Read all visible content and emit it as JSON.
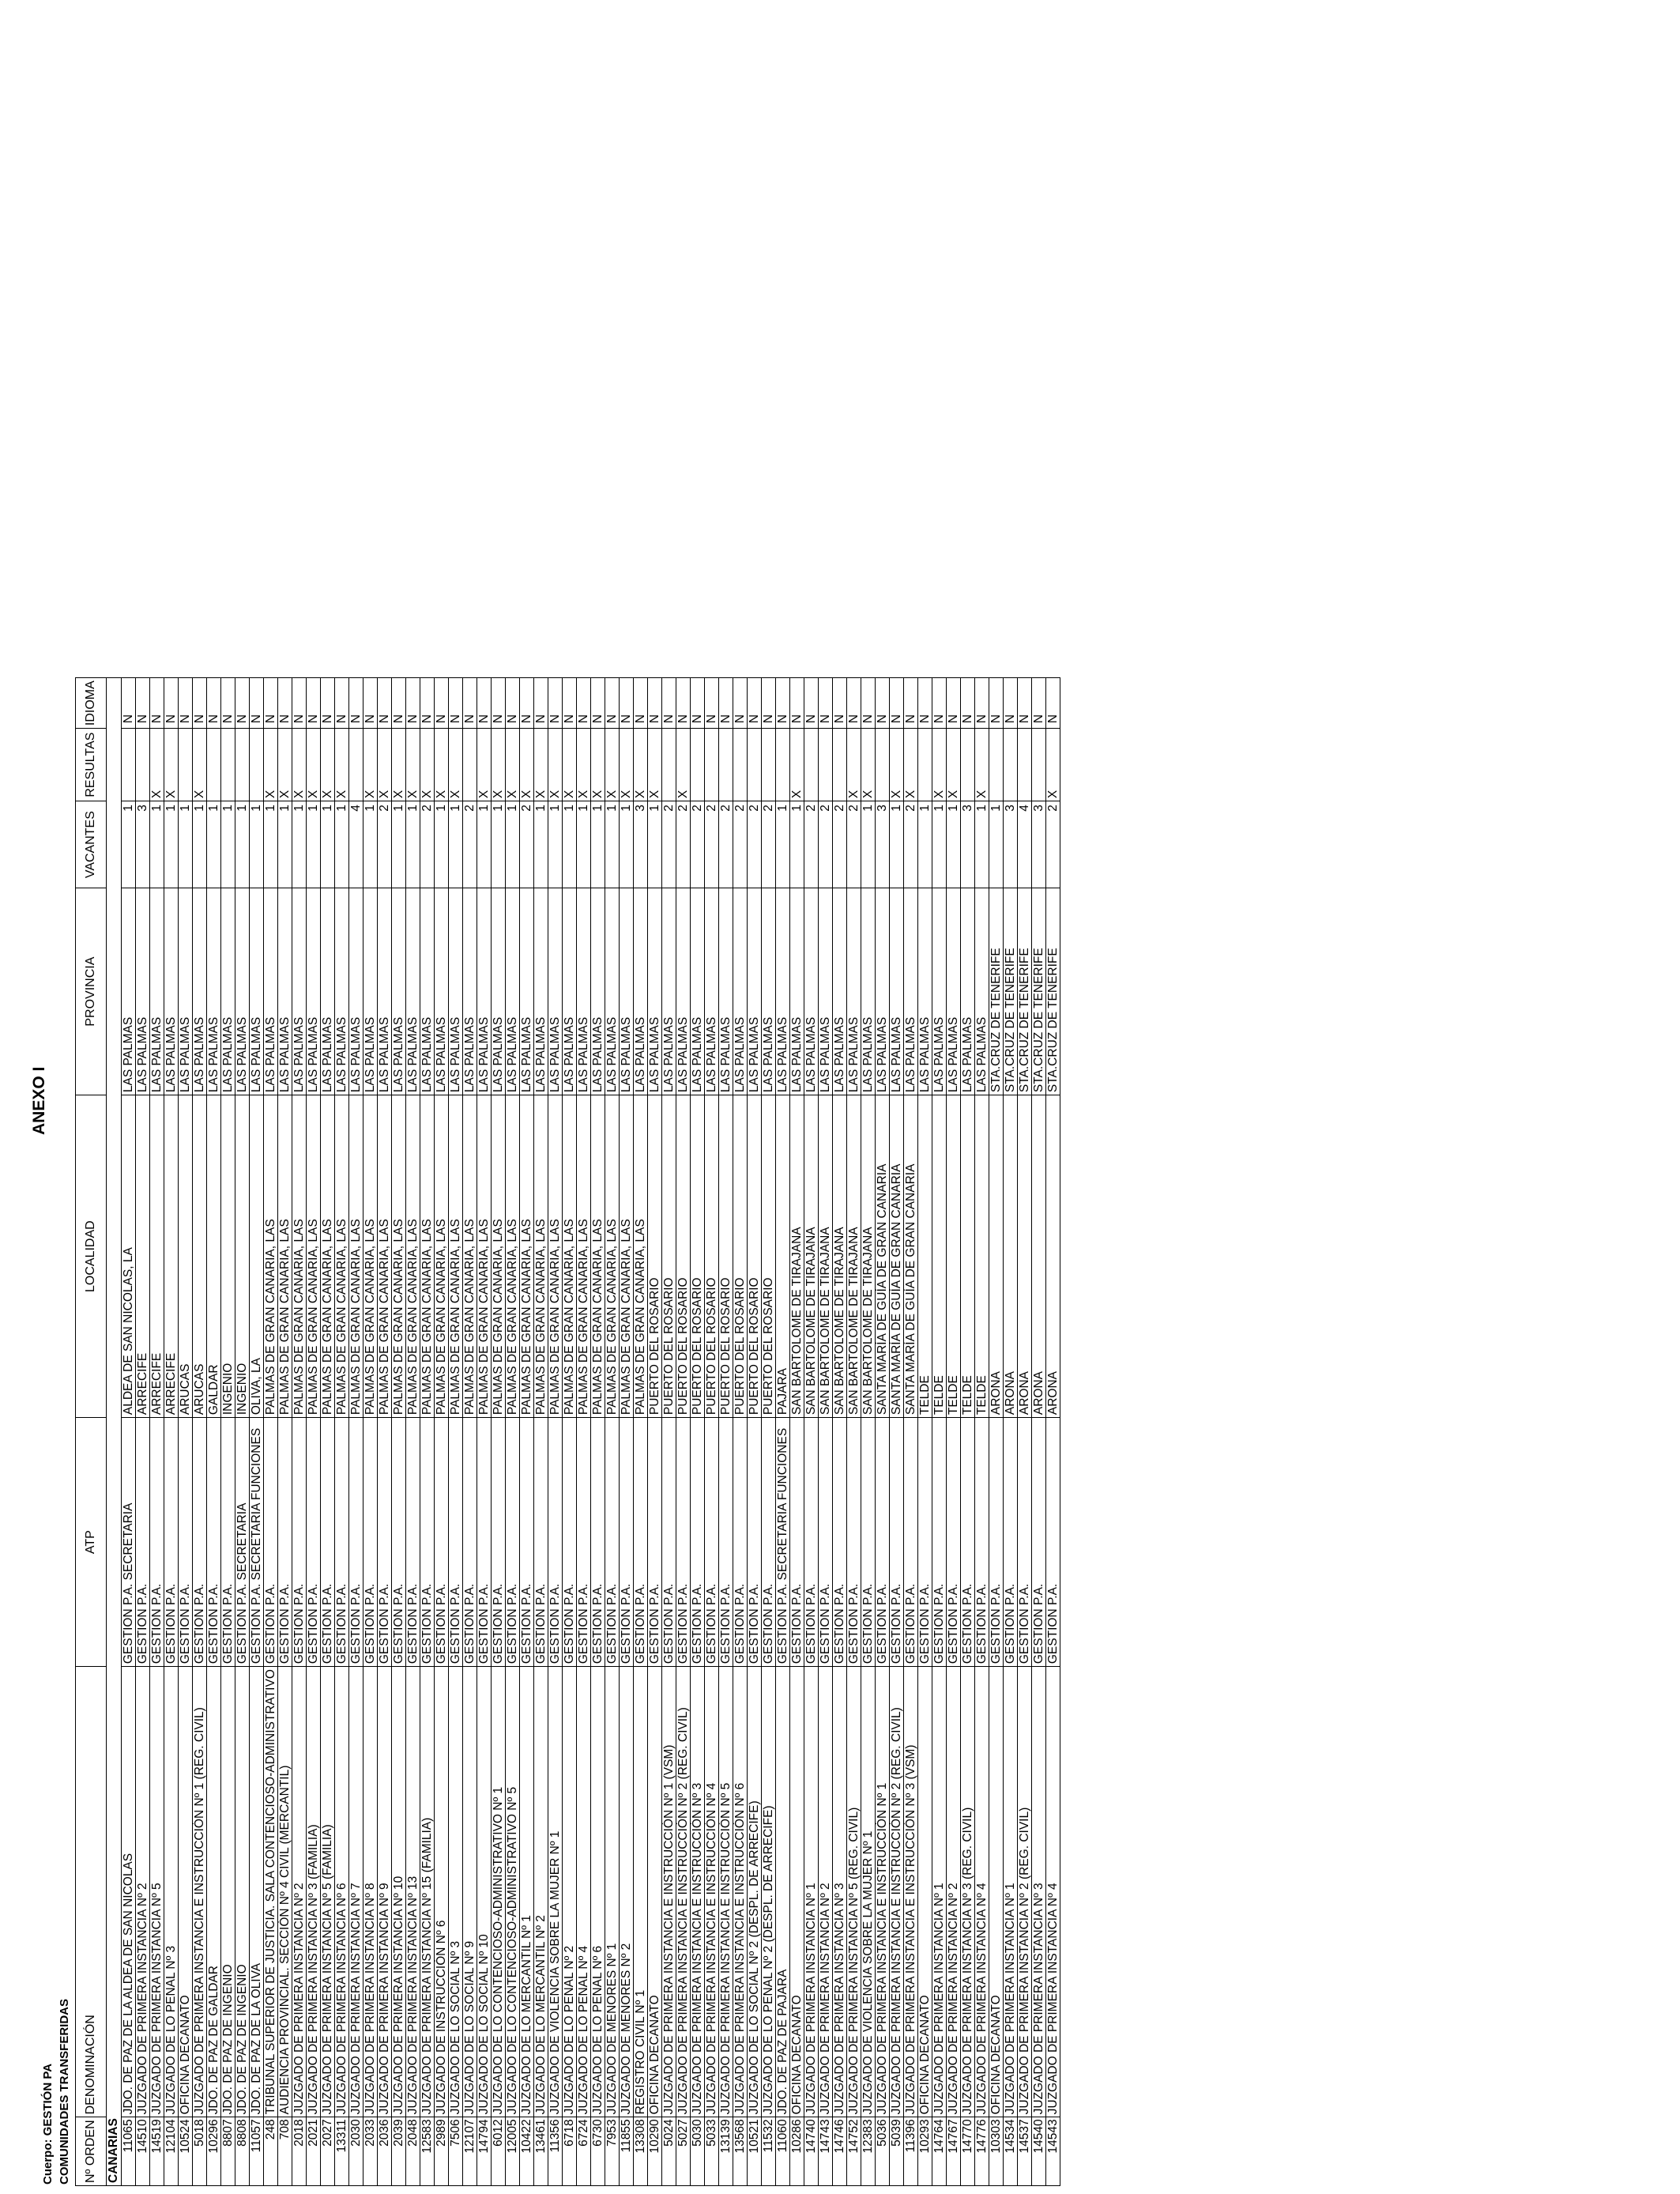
{
  "title": "ANEXO I",
  "cuerpo": "Cuerpo: GESTIÓN PA",
  "section": "COMUNIDADES TRANSFERIDAS",
  "columns": {
    "orden": "Nº ORDEN",
    "denominacion": "DENOMINACIÓN",
    "atp": "ATP",
    "localidad": "LOCALIDAD",
    "provincia": "PROVINCIA",
    "vacantes": "VACANTES",
    "resultas": "RESULTAS",
    "idioma": "IDIOMA"
  },
  "region": "CANARIAS",
  "rows": [
    [
      "11065",
      "JDO. DE PAZ DE LA ALDEA DE SAN NICOLAS",
      "GESTION P.A. SECRETARIA",
      "ALDEA DE SAN NICOLAS, LA",
      "LAS PALMAS",
      "1",
      "",
      "N"
    ],
    [
      "14510",
      "JUZGADO DE PRIMERA INSTANCIA Nº 2",
      "GESTION P.A.",
      "ARRECIFE",
      "LAS PALMAS",
      "3",
      "",
      "N"
    ],
    [
      "14519",
      "JUZGADO DE PRIMERA INSTANCIA Nº 5",
      "GESTION P.A.",
      "ARRECIFE",
      "LAS PALMAS",
      "1",
      "X",
      "N"
    ],
    [
      "12104",
      "JUZGADO DE LO PENAL Nº 3",
      "GESTION P.A.",
      "ARRECIFE",
      "LAS PALMAS",
      "1",
      "X",
      "N"
    ],
    [
      "10524",
      "OFICINA DECANATO",
      "GESTION P.A.",
      "ARUCAS",
      "LAS PALMAS",
      "1",
      "",
      "N"
    ],
    [
      "5018",
      "JUZGADO DE PRIMERA INSTANCIA E INSTRUCCIÓN Nº 1 (REG. CIVIL)",
      "GESTION P.A.",
      "ARUCAS",
      "LAS PALMAS",
      "1",
      "X",
      "N"
    ],
    [
      "10296",
      "JDO. DE PAZ DE GALDAR",
      "GESTION P.A.",
      "GALDAR",
      "LAS PALMAS",
      "1",
      "",
      "N"
    ],
    [
      "8807",
      "JDO. DE PAZ DE INGENIO",
      "GESTION P.A.",
      "INGENIO",
      "LAS PALMAS",
      "1",
      "",
      "N"
    ],
    [
      "8808",
      "JDO. DE PAZ DE INGENIO",
      "GESTION P.A. SECRETARIA",
      "INGENIO",
      "LAS PALMAS",
      "1",
      "",
      "N"
    ],
    [
      "11057",
      "JDO. DE PAZ DE LA OLIVA",
      "GESTION P.A. SECRETARIA FUNCIONES",
      "OLIVA, LA",
      "LAS PALMAS",
      "1",
      "",
      "N"
    ],
    [
      "248",
      "TRIBUNAL SUPERIOR DE JUSTICIA. SALA CONTENCIOSO-ADMINISTRATIVO",
      "GESTION P.A.",
      "PALMAS DE GRAN CANARIA, LAS",
      "LAS PALMAS",
      "1",
      "X",
      "N"
    ],
    [
      "708",
      "AUDIENCIA PROVINCIAL. SECCIÓN Nº 4 CIVIL (MERCANTIL)",
      "GESTION P.A.",
      "PALMAS DE GRAN CANARIA, LAS",
      "LAS PALMAS",
      "1",
      "X",
      "N"
    ],
    [
      "2018",
      "JUZGADO DE PRIMERA INSTANCIA Nº 2",
      "GESTION P.A.",
      "PALMAS DE GRAN CANARIA, LAS",
      "LAS PALMAS",
      "1",
      "X",
      "N"
    ],
    [
      "2021",
      "JUZGADO DE PRIMERA INSTANCIA Nº 3 (FAMILIA)",
      "GESTION P.A.",
      "PALMAS DE GRAN CANARIA, LAS",
      "LAS PALMAS",
      "1",
      "X",
      "N"
    ],
    [
      "2027",
      "JUZGADO DE PRIMERA INSTANCIA Nº 5 (FAMILIA)",
      "GESTION P.A.",
      "PALMAS DE GRAN CANARIA, LAS",
      "LAS PALMAS",
      "1",
      "X",
      "N"
    ],
    [
      "13311",
      "JUZGADO DE PRIMERA INSTANCIA Nº 6",
      "GESTION P.A.",
      "PALMAS DE GRAN CANARIA, LAS",
      "LAS PALMAS",
      "1",
      "X",
      "N"
    ],
    [
      "2030",
      "JUZGADO DE PRIMERA INSTANCIA Nº 7",
      "GESTION P.A.",
      "PALMAS DE GRAN CANARIA, LAS",
      "LAS PALMAS",
      "4",
      "",
      "N"
    ],
    [
      "2033",
      "JUZGADO DE PRIMERA INSTANCIA Nº 8",
      "GESTION P.A.",
      "PALMAS DE GRAN CANARIA, LAS",
      "LAS PALMAS",
      "1",
      "X",
      "N"
    ],
    [
      "2036",
      "JUZGADO DE PRIMERA INSTANCIA Nº 9",
      "GESTION P.A.",
      "PALMAS DE GRAN CANARIA, LAS",
      "LAS PALMAS",
      "2",
      "X",
      "N"
    ],
    [
      "2039",
      "JUZGADO DE PRIMERA INSTANCIA Nº 10",
      "GESTION P.A.",
      "PALMAS DE GRAN CANARIA, LAS",
      "LAS PALMAS",
      "1",
      "X",
      "N"
    ],
    [
      "2048",
      "JUZGADO DE PRIMERA INSTANCIA Nº 13",
      "GESTION P.A.",
      "PALMAS DE GRAN CANARIA, LAS",
      "LAS PALMAS",
      "1",
      "X",
      "N"
    ],
    [
      "12583",
      "JUZGADO DE PRIMERA INSTANCIA Nº 15 (FAMILIA)",
      "GESTION P.A.",
      "PALMAS DE GRAN CANARIA, LAS",
      "LAS PALMAS",
      "2",
      "X",
      "N"
    ],
    [
      "2989",
      "JUZGADO DE INSTRUCCIÓN Nº 6",
      "GESTION P.A.",
      "PALMAS DE GRAN CANARIA, LAS",
      "LAS PALMAS",
      "1",
      "X",
      "N"
    ],
    [
      "7506",
      "JUZGADO DE LO SOCIAL Nº 3",
      "GESTION P.A.",
      "PALMAS DE GRAN CANARIA, LAS",
      "LAS PALMAS",
      "1",
      "X",
      "N"
    ],
    [
      "12107",
      "JUZGADO DE LO SOCIAL Nº 9",
      "GESTION P.A.",
      "PALMAS DE GRAN CANARIA, LAS",
      "LAS PALMAS",
      "2",
      "",
      "N"
    ],
    [
      "14794",
      "JUZGADO DE LO SOCIAL Nº 10",
      "GESTION P.A.",
      "PALMAS DE GRAN CANARIA, LAS",
      "LAS PALMAS",
      "1",
      "X",
      "N"
    ],
    [
      "6012",
      "JUZGADO DE LO CONTENCIOSO-ADMINISTRATIVO Nº 1",
      "GESTION P.A.",
      "PALMAS DE GRAN CANARIA, LAS",
      "LAS PALMAS",
      "1",
      "X",
      "N"
    ],
    [
      "12005",
      "JUZGADO DE LO CONTENCIOSO-ADMINISTRATIVO Nº 5",
      "GESTION P.A.",
      "PALMAS DE GRAN CANARIA, LAS",
      "LAS PALMAS",
      "1",
      "X",
      "N"
    ],
    [
      "10422",
      "JUZGADO DE LO MERCANTIL Nº 1",
      "GESTION P.A.",
      "PALMAS DE GRAN CANARIA, LAS",
      "LAS PALMAS",
      "2",
      "X",
      "N"
    ],
    [
      "13461",
      "JUZGADO DE LO MERCANTIL Nº 2",
      "GESTION P.A.",
      "PALMAS DE GRAN CANARIA, LAS",
      "LAS PALMAS",
      "1",
      "X",
      "N"
    ],
    [
      "11356",
      "JUZGADO DE VIOLENCIA SOBRE LA MUJER Nº 1",
      "GESTION P.A.",
      "PALMAS DE GRAN CANARIA, LAS",
      "LAS PALMAS",
      "1",
      "X",
      "N"
    ],
    [
      "6718",
      "JUZGADO DE LO PENAL Nº 2",
      "GESTION P.A.",
      "PALMAS DE GRAN CANARIA, LAS",
      "LAS PALMAS",
      "1",
      "X",
      "N"
    ],
    [
      "6724",
      "JUZGADO DE LO PENAL Nº 4",
      "GESTION P.A.",
      "PALMAS DE GRAN CANARIA, LAS",
      "LAS PALMAS",
      "1",
      "X",
      "N"
    ],
    [
      "6730",
      "JUZGADO DE LO PENAL Nº 6",
      "GESTION P.A.",
      "PALMAS DE GRAN CANARIA, LAS",
      "LAS PALMAS",
      "1",
      "X",
      "N"
    ],
    [
      "7953",
      "JUZGADO DE MENORES Nº 1",
      "GESTION P.A.",
      "PALMAS DE GRAN CANARIA, LAS",
      "LAS PALMAS",
      "1",
      "X",
      "N"
    ],
    [
      "11855",
      "JUZGADO DE MENORES Nº 2",
      "GESTION P.A.",
      "PALMAS DE GRAN CANARIA, LAS",
      "LAS PALMAS",
      "1",
      "X",
      "N"
    ],
    [
      "13308",
      "REGISTRO CIVIL Nº 1",
      "GESTION P.A.",
      "PALMAS DE GRAN CANARIA, LAS",
      "LAS PALMAS",
      "3",
      "X",
      "N"
    ],
    [
      "10290",
      "OFICINA DECANATO",
      "GESTION P.A.",
      "PUERTO DEL ROSARIO",
      "LAS PALMAS",
      "1",
      "X",
      "N"
    ],
    [
      "5024",
      "JUZGADO DE PRIMERA INSTANCIA E INSTRUCCIÓN Nº 1 (VSM)",
      "GESTION P.A.",
      "PUERTO DEL ROSARIO",
      "LAS PALMAS",
      "2",
      "",
      "N"
    ],
    [
      "5027",
      "JUZGADO DE PRIMERA INSTANCIA E INSTRUCCIÓN Nº 2 (REG. CIVIL)",
      "GESTION P.A.",
      "PUERTO DEL ROSARIO",
      "LAS PALMAS",
      "2",
      "X",
      "N"
    ],
    [
      "5030",
      "JUZGADO DE PRIMERA INSTANCIA E INSTRUCCIÓN Nº 3",
      "GESTION P.A.",
      "PUERTO DEL ROSARIO",
      "LAS PALMAS",
      "2",
      "",
      "N"
    ],
    [
      "5033",
      "JUZGADO DE PRIMERA INSTANCIA E INSTRUCCIÓN Nº 4",
      "GESTION P.A.",
      "PUERTO DEL ROSARIO",
      "LAS PALMAS",
      "2",
      "",
      "N"
    ],
    [
      "13139",
      "JUZGADO DE PRIMERA INSTANCIA E INSTRUCCIÓN Nº 5",
      "GESTION P.A.",
      "PUERTO DEL ROSARIO",
      "LAS PALMAS",
      "2",
      "",
      "N"
    ],
    [
      "13568",
      "JUZGADO DE PRIMERA INSTANCIA E INSTRUCCIÓN Nº 6",
      "GESTION P.A.",
      "PUERTO DEL ROSARIO",
      "LAS PALMAS",
      "2",
      "",
      "N"
    ],
    [
      "10521",
      "JUZGADO DE LO SOCIAL Nº 2 (DESPL. DE ARRECIFE)",
      "GESTION P.A.",
      "PUERTO DEL ROSARIO",
      "LAS PALMAS",
      "2",
      "",
      "N"
    ],
    [
      "11532",
      "JUZGADO DE LO PENAL Nº 2 (DESPL. DE ARRECIFE)",
      "GESTION P.A.",
      "PUERTO DEL ROSARIO",
      "LAS PALMAS",
      "2",
      "",
      "N"
    ],
    [
      "11060",
      "JDO. DE PAZ DE PAJARA",
      "GESTION P.A. SECRETARIA FUNCIONES",
      "PAJARA",
      "LAS PALMAS",
      "1",
      "",
      "N"
    ],
    [
      "10286",
      "OFICINA DECANATO",
      "GESTION P.A.",
      "SAN BARTOLOME DE TIRAJANA",
      "LAS PALMAS",
      "1",
      "X",
      "N"
    ],
    [
      "14740",
      "JUZGADO DE PRIMERA INSTANCIA Nº 1",
      "GESTION P.A.",
      "SAN BARTOLOME DE TIRAJANA",
      "LAS PALMAS",
      "2",
      "",
      "N"
    ],
    [
      "14743",
      "JUZGADO DE PRIMERA INSTANCIA Nº 2",
      "GESTION P.A.",
      "SAN BARTOLOME DE TIRAJANA",
      "LAS PALMAS",
      "2",
      "",
      "N"
    ],
    [
      "14746",
      "JUZGADO DE PRIMERA INSTANCIA Nº 3",
      "GESTION P.A.",
      "SAN BARTOLOME DE TIRAJANA",
      "LAS PALMAS",
      "2",
      "",
      "N"
    ],
    [
      "14752",
      "JUZGADO DE PRIMERA INSTANCIA Nº 5 (REG. CIVIL)",
      "GESTION P.A.",
      "SAN BARTOLOME DE TIRAJANA",
      "LAS PALMAS",
      "2",
      "X",
      "N"
    ],
    [
      "12383",
      "JUZGADO DE VIOLENCIA SOBRE LA MUJER Nº 1",
      "GESTION P.A.",
      "SAN BARTOLOME DE TIRAJANA",
      "LAS PALMAS",
      "1",
      "X",
      "N"
    ],
    [
      "5036",
      "JUZGADO DE PRIMERA INSTANCIA E INSTRUCCIÓN Nº 1",
      "GESTION P.A.",
      "SANTA MARÍA DE GUÍA DE GRAN CANARIA",
      "LAS PALMAS",
      "3",
      "",
      "N"
    ],
    [
      "5039",
      "JUZGADO DE PRIMERA INSTANCIA E INSTRUCCIÓN Nº 2 (REG. CIVIL)",
      "GESTION P.A.",
      "SANTA MARÍA DE GUÍA DE GRAN CANARIA",
      "LAS PALMAS",
      "1",
      "X",
      "N"
    ],
    [
      "11396",
      "JUZGADO DE PRIMERA INSTANCIA E INSTRUCCIÓN Nº 3 (VSM)",
      "GESTION P.A.",
      "SANTA MARÍA DE GUÍA DE GRAN CANARIA",
      "LAS PALMAS",
      "2",
      "X",
      "N"
    ],
    [
      "10293",
      "OFICINA DECANATO",
      "GESTION P.A.",
      "TELDE",
      "LAS PALMAS",
      "1",
      "",
      "N"
    ],
    [
      "14764",
      "JUZGADO DE PRIMERA INSTANCIA Nº 1",
      "GESTION P.A.",
      "TELDE",
      "LAS PALMAS",
      "1",
      "X",
      "N"
    ],
    [
      "14767",
      "JUZGADO DE PRIMERA INSTANCIA Nº 2",
      "GESTION P.A.",
      "TELDE",
      "LAS PALMAS",
      "1",
      "X",
      "N"
    ],
    [
      "14770",
      "JUZGADO DE PRIMERA INSTANCIA Nº 3 (REG. CIVIL)",
      "GESTION P.A.",
      "TELDE",
      "LAS PALMAS",
      "3",
      "",
      "N"
    ],
    [
      "14776",
      "JUZGADO DE PRIMERA INSTANCIA Nº 4",
      "GESTION P.A.",
      "TELDE",
      "LAS PALMAS",
      "1",
      "X",
      "N"
    ],
    [
      "10303",
      "OFICINA DECANATO",
      "GESTION P.A.",
      "ARONA",
      "STA.CRUZ DE TENERIFE",
      "1",
      "",
      "N"
    ],
    [
      "14534",
      "JUZGADO DE PRIMERA INSTANCIA Nº 1",
      "GESTION P.A.",
      "ARONA",
      "STA.CRUZ DE TENERIFE",
      "3",
      "",
      "N"
    ],
    [
      "14537",
      "JUZGADO DE PRIMERA INSTANCIA Nº 2 (REG. CIVIL)",
      "GESTION P.A.",
      "ARONA",
      "STA.CRUZ DE TENERIFE",
      "4",
      "",
      "N"
    ],
    [
      "14540",
      "JUZGADO DE PRIMERA INSTANCIA Nº 3",
      "GESTION P.A.",
      "ARONA",
      "STA.CRUZ DE TENERIFE",
      "3",
      "",
      "N"
    ],
    [
      "14543",
      "JUZGADO DE PRIMERA INSTANCIA Nº 4",
      "GESTION P.A.",
      "ARONA",
      "STA.CRUZ DE TENERIFE",
      "2",
      "X",
      "N"
    ]
  ]
}
